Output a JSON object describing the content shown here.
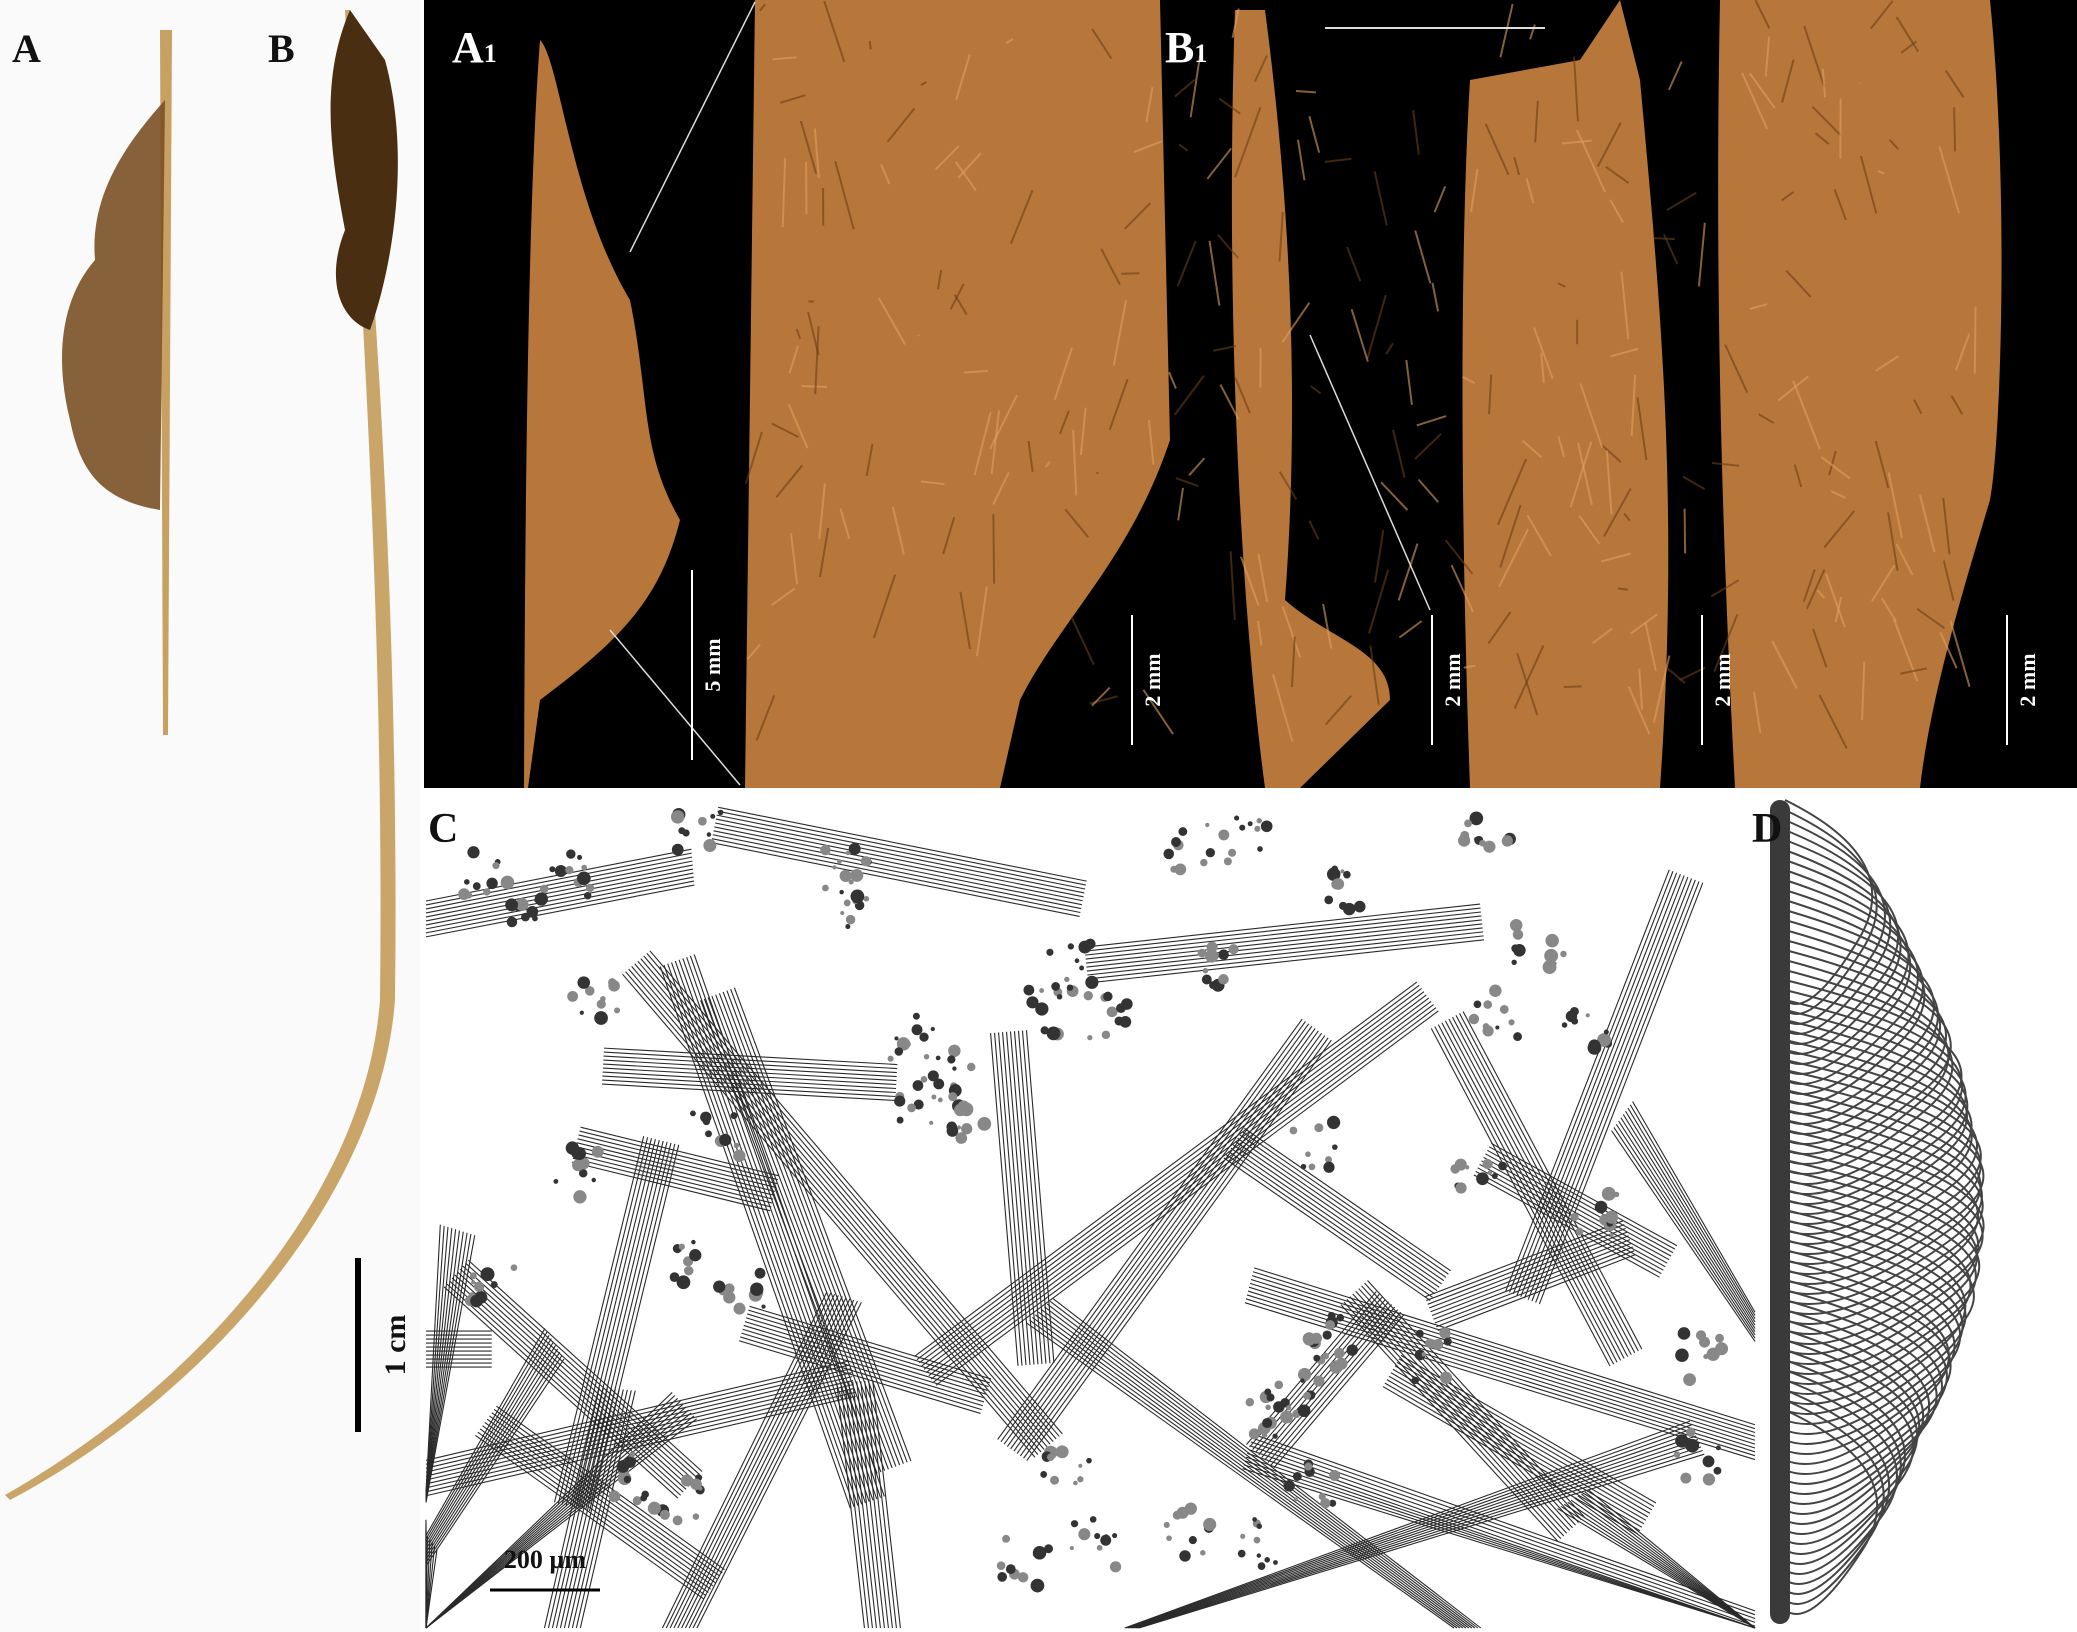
{
  "panels": {
    "a": {
      "label": "A"
    },
    "b": {
      "label": "B"
    },
    "a1": {
      "label": "A",
      "sub": "1"
    },
    "b1": {
      "label": "B",
      "sub": "1"
    },
    "c": {
      "label": "C"
    },
    "d": {
      "label": "D"
    }
  },
  "scale_bars": {
    "left": "1 cm",
    "a1_overview": "5 mm",
    "a1_detail": "2 mm",
    "b1_overview": "2 mm",
    "b1_detail_1": "2 mm",
    "b1_detail_2": "2 mm",
    "c": "200 µm"
  },
  "colors": {
    "photo_background": "#000000",
    "specimen": "#b8773a",
    "specimen_dark": "#6b3f1a",
    "stem": "#c9a56a",
    "drawing_ink": "#2a2a2a"
  }
}
